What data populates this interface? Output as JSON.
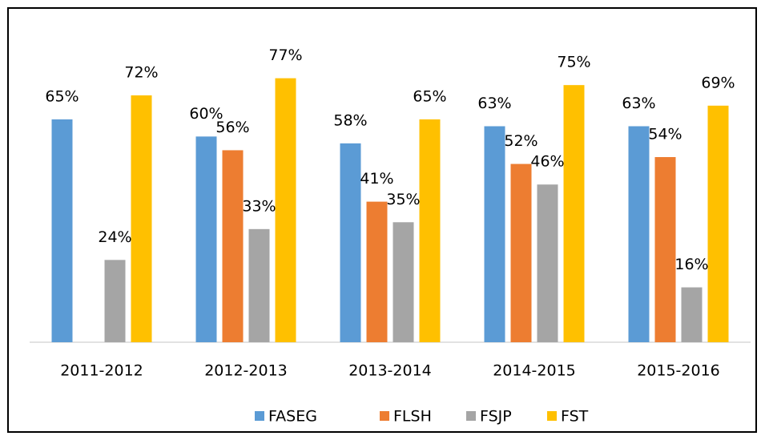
{
  "chart_data": {
    "type": "bar",
    "categories": [
      "2011-2012",
      "2012-2013",
      "2013-2014",
      "2014-2015",
      "2015-2016"
    ],
    "series": [
      {
        "name": "FASEG",
        "color": "#5b9bd5",
        "values": [
          65,
          60,
          58,
          63,
          63
        ],
        "value_labels": [
          "65%",
          "60%",
          "58%",
          "63%",
          "63%"
        ]
      },
      {
        "name": "FLSH",
        "color": "#ed7d31",
        "values": [
          null,
          56,
          41,
          52,
          54
        ],
        "value_labels": [
          null,
          "56%",
          "41%",
          "52%",
          "54%"
        ]
      },
      {
        "name": "FSJP",
        "color": "#a5a5a5",
        "values": [
          24,
          33,
          35,
          46,
          16
        ],
        "value_labels": [
          "24%",
          "33%",
          "35%",
          "46%",
          "16%"
        ]
      },
      {
        "name": "FST",
        "color": "#ffc000",
        "values": [
          72,
          77,
          65,
          75,
          69
        ],
        "value_labels": [
          "72%",
          "77%",
          "65%",
          "75%",
          "69%"
        ]
      }
    ],
    "ylim": [
      0,
      90
    ]
  }
}
